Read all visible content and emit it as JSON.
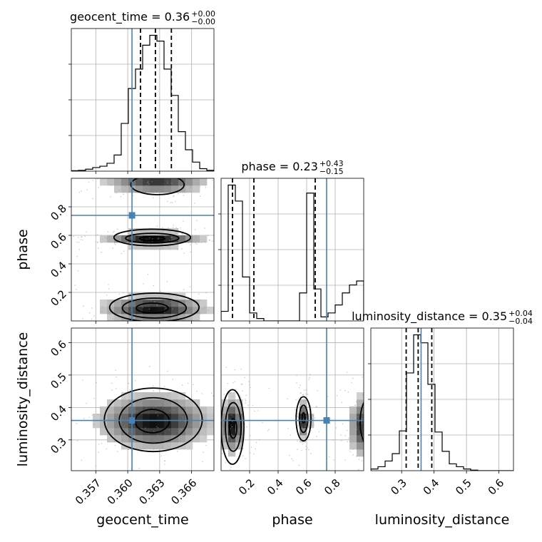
{
  "chart_data": {
    "type": "corner",
    "parameters": [
      {
        "name": "geocent_time",
        "axis_label": "geocent_time",
        "title_main": "geocent_time = 0.36",
        "title_sup": "+0.00",
        "title_sub": "−0.00",
        "range": [
          0.3547,
          0.3681
        ],
        "ticks": [
          0.357,
          0.36,
          0.363,
          0.366
        ],
        "tick_labels": [
          "0.357",
          "0.360",
          "0.363",
          "0.366"
        ],
        "truth": 0.3604,
        "quantiles": [
          0.3612,
          0.3626,
          0.3641
        ],
        "histogram": {
          "edges": [
            0.3547,
            0.35537,
            0.35604,
            0.35671,
            0.35738,
            0.35805,
            0.35872,
            0.35939,
            0.36006,
            0.36073,
            0.3614,
            0.36207,
            0.36274,
            0.36341,
            0.36408,
            0.36475,
            0.36542,
            0.36609,
            0.36676,
            0.36743,
            0.3681
          ],
          "counts": [
            0.3,
            0.5,
            1.2,
            2.2,
            3.0,
            4.8,
            9.8,
            29.0,
            50.2,
            62.0,
            76.5,
            82.5,
            79.0,
            62.0,
            46.0,
            24.0,
            13.0,
            5.5,
            1.5,
            0.5
          ]
        }
      },
      {
        "name": "phase",
        "axis_label": "phase",
        "title_main": "phase = 0.23",
        "title_sup": "+0.43",
        "title_sub": "−0.15",
        "range": [
          0.0,
          1.0
        ],
        "ticks": [
          0.2,
          0.4,
          0.6,
          0.8
        ],
        "tick_labels": [
          "0.2",
          "0.4",
          "0.6",
          "0.8"
        ],
        "truth": 0.74,
        "quantiles": [
          0.08,
          0.23,
          0.66
        ],
        "histogram": {
          "edges": [
            0,
            0.05,
            0.1,
            0.15,
            0.2,
            0.25,
            0.3,
            0.35,
            0.4,
            0.45,
            0.5,
            0.55,
            0.6,
            0.65,
            0.7,
            0.75,
            0.8,
            0.85,
            0.9,
            0.95,
            1.0
          ],
          "counts": [
            12,
            170,
            150,
            55,
            10,
            3,
            0,
            0,
            0,
            0,
            0,
            35,
            160,
            40,
            5,
            10,
            20,
            35,
            45,
            50
          ]
        }
      },
      {
        "name": "luminosity_distance",
        "axis_label": "luminosity_distance",
        "title_main": "luminosity_distance = 0.35",
        "title_sup": "+0.04",
        "title_sub": "−0.04",
        "range": [
          0.205,
          0.645
        ],
        "ticks": [
          0.3,
          0.4,
          0.5,
          0.6
        ],
        "tick_labels": [
          "0.3",
          "0.4",
          "0.5",
          "0.6"
        ],
        "truth": 0.36,
        "quantiles": [
          0.314,
          0.351,
          0.393
        ],
        "histogram": {
          "edges": [
            0.205,
            0.227,
            0.249,
            0.271,
            0.293,
            0.315,
            0.337,
            0.359,
            0.381,
            0.403,
            0.425,
            0.447,
            0.469,
            0.491,
            0.513,
            0.535,
            0.557,
            0.579,
            0.601,
            0.623,
            0.645
          ],
          "counts": [
            3,
            7,
            17,
            30,
            70,
            172,
            239,
            225,
            152,
            68,
            34,
            12,
            7,
            3,
            1,
            0,
            0,
            0,
            0,
            0
          ]
        }
      }
    ],
    "pairs": [
      {
        "x_param": 0,
        "y_param": 1,
        "density": [
          {
            "cx": 0.3627,
            "cy": 0.975,
            "sx": 0.0026,
            "sy": 0.045,
            "w": 0.8
          },
          {
            "cx": 0.3624,
            "cy": 0.575,
            "sx": 0.0024,
            "sy": 0.028,
            "w": 1.0
          },
          {
            "cx": 0.3625,
            "cy": 0.085,
            "sx": 0.0026,
            "sy": 0.05,
            "w": 1.0
          }
        ],
        "contours": [
          {
            "cx": 0.3628,
            "cy": 0.955,
            "rx": 0.0025,
            "ry": 0.07
          },
          {
            "cx": 0.3623,
            "cy": 0.585,
            "rx": 0.0036,
            "ry": 0.058
          },
          {
            "cx": 0.3623,
            "cy": 0.58,
            "rx": 0.0025,
            "ry": 0.034
          },
          {
            "cx": 0.3623,
            "cy": 0.577,
            "rx": 0.0012,
            "ry": 0.014
          },
          {
            "cx": 0.3625,
            "cy": 0.095,
            "rx": 0.0042,
            "ry": 0.1
          },
          {
            "cx": 0.3625,
            "cy": 0.09,
            "rx": 0.003,
            "ry": 0.07
          },
          {
            "cx": 0.3623,
            "cy": 0.09,
            "rx": 0.0015,
            "ry": 0.035
          }
        ]
      },
      {
        "x_param": 0,
        "y_param": 2,
        "density": [
          {
            "cx": 0.3625,
            "cy": 0.357,
            "sx": 0.0028,
            "sy": 0.045,
            "w": 1.0
          }
        ],
        "contours": [
          {
            "cx": 0.3624,
            "cy": 0.362,
            "rx": 0.0046,
            "ry": 0.098
          },
          {
            "cx": 0.3624,
            "cy": 0.36,
            "rx": 0.0032,
            "ry": 0.07
          },
          {
            "cx": 0.3623,
            "cy": 0.358,
            "rx": 0.0016,
            "ry": 0.036
          }
        ]
      },
      {
        "x_param": 1,
        "y_param": 2,
        "density": [
          {
            "cx": 0.08,
            "cy": 0.345,
            "sx": 0.045,
            "sy": 0.045,
            "w": 1.0
          },
          {
            "cx": 0.58,
            "cy": 0.362,
            "sx": 0.025,
            "sy": 0.03,
            "w": 0.9
          },
          {
            "cx": 0.99,
            "cy": 0.34,
            "sx": 0.05,
            "sy": 0.05,
            "w": 0.8
          }
        ],
        "contours": [
          {
            "cx": 0.08,
            "cy": 0.34,
            "rx": 0.08,
            "ry": 0.115
          },
          {
            "cx": 0.085,
            "cy": 0.34,
            "rx": 0.055,
            "ry": 0.075
          },
          {
            "cx": 0.085,
            "cy": 0.335,
            "rx": 0.025,
            "ry": 0.03
          },
          {
            "cx": 0.578,
            "cy": 0.365,
            "rx": 0.052,
            "ry": 0.068
          },
          {
            "cx": 0.578,
            "cy": 0.365,
            "rx": 0.03,
            "ry": 0.042
          },
          {
            "cx": 0.578,
            "cy": 0.368,
            "rx": 0.01,
            "ry": 0.016
          },
          {
            "cx": 1.04,
            "cy": 0.355,
            "rx": 0.065,
            "ry": 0.075
          }
        ]
      }
    ],
    "grid": true,
    "truth_color": "#4682b4",
    "quantile_style": "dashed",
    "sample_color": "#999999"
  }
}
